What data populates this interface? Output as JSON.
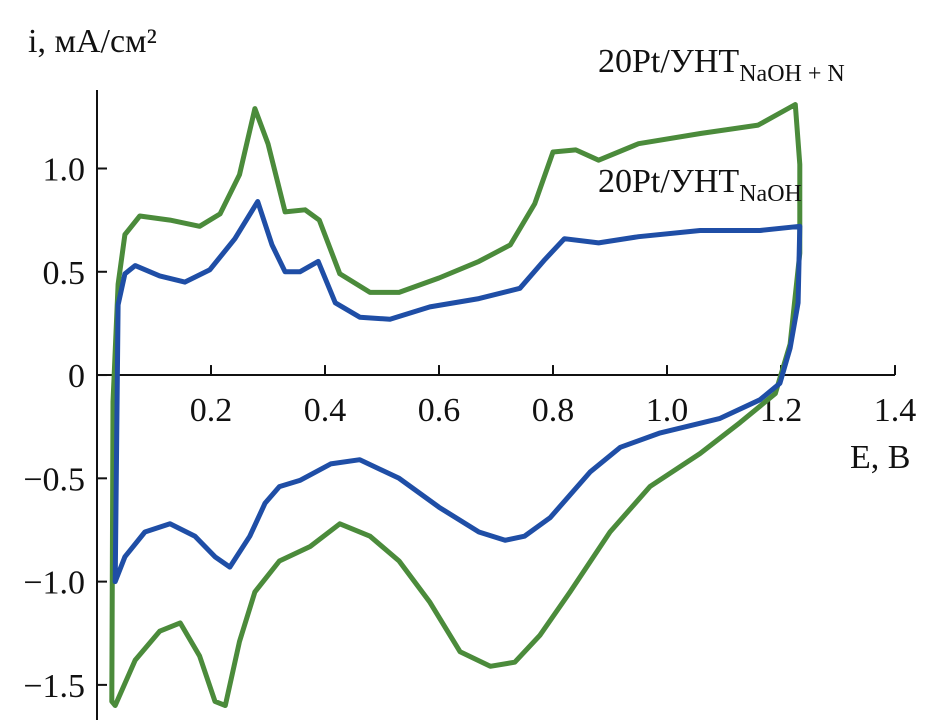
{
  "chart_data": {
    "type": "line",
    "y_label": "i, мА/см²",
    "x_label": "E, В",
    "xlim": [
      0,
      1.4
    ],
    "ylim": [
      -1.67,
      1.38
    ],
    "xticks": [
      0.2,
      0.4,
      0.6,
      0.8,
      {
        "value": 1.0,
        "label": "1.0"
      },
      1.2,
      1.4
    ],
    "yticks": [
      {
        "value": -1.5,
        "label": "−1.5"
      },
      {
        "value": -1.0,
        "label": "−1.0"
      },
      {
        "value": -0.5,
        "label": "−0.5"
      },
      0,
      0.5,
      {
        "value": 1.0,
        "label": "1.0"
      }
    ],
    "series": [
      {
        "name": "20Pt/УНТ",
        "name_sub": "NaOH + N",
        "color": "#4b8b3b",
        "x": [
          0.026,
          0.028,
          0.037,
          0.049,
          0.075,
          0.128,
          0.18,
          0.216,
          0.25,
          0.277,
          0.3,
          0.33,
          0.365,
          0.39,
          0.426,
          0.479,
          0.53,
          0.6,
          0.67,
          0.725,
          0.768,
          0.8,
          0.84,
          0.88,
          0.95,
          1.06,
          1.16,
          1.225,
          1.233,
          1.233,
          1.216,
          1.19,
          1.128,
          1.058,
          0.97,
          0.9,
          0.83,
          0.777,
          0.733,
          0.69,
          0.637,
          0.584,
          0.53,
          0.479,
          0.426,
          0.374,
          0.32,
          0.277,
          0.25,
          0.225,
          0.207,
          0.18,
          0.146,
          0.11,
          0.067,
          0.032
        ],
        "values": [
          -1.58,
          -0.13,
          0.44,
          0.68,
          0.77,
          0.75,
          0.72,
          0.78,
          0.97,
          1.29,
          1.12,
          0.79,
          0.8,
          0.75,
          0.49,
          0.4,
          0.4,
          0.47,
          0.55,
          0.63,
          0.83,
          1.08,
          1.09,
          1.04,
          1.12,
          1.17,
          1.21,
          1.31,
          1.02,
          0.59,
          0.15,
          -0.09,
          -0.23,
          -0.38,
          -0.54,
          -0.76,
          -1.05,
          -1.26,
          -1.39,
          -1.41,
          -1.34,
          -1.1,
          -0.9,
          -0.78,
          -0.72,
          -0.83,
          -0.9,
          -1.05,
          -1.29,
          -1.6,
          -1.58,
          -1.36,
          -1.2,
          -1.24,
          -1.38,
          -1.6
        ]
      },
      {
        "name": "20Pt/УНТ",
        "name_sub": "NaOH",
        "color": "#1f4ea6",
        "x": [
          0.032,
          0.037,
          0.049,
          0.067,
          0.11,
          0.154,
          0.198,
          0.242,
          0.282,
          0.307,
          0.33,
          0.356,
          0.388,
          0.418,
          0.461,
          0.514,
          0.584,
          0.67,
          0.742,
          0.786,
          0.82,
          0.88,
          0.95,
          1.058,
          1.163,
          1.233,
          1.23,
          1.216,
          1.198,
          1.163,
          1.093,
          0.988,
          0.918,
          0.865,
          0.795,
          0.75,
          0.716,
          0.67,
          0.6,
          0.53,
          0.461,
          0.41,
          0.356,
          0.32,
          0.295,
          0.268,
          0.233,
          0.207,
          0.172,
          0.128,
          0.084,
          0.049,
          0.032
        ],
        "values": [
          -1.0,
          0.34,
          0.49,
          0.53,
          0.48,
          0.45,
          0.51,
          0.66,
          0.84,
          0.63,
          0.5,
          0.5,
          0.55,
          0.35,
          0.28,
          0.27,
          0.33,
          0.37,
          0.42,
          0.56,
          0.66,
          0.64,
          0.67,
          0.7,
          0.7,
          0.72,
          0.35,
          0.13,
          -0.04,
          -0.12,
          -0.21,
          -0.28,
          -0.35,
          -0.47,
          -0.69,
          -0.78,
          -0.8,
          -0.76,
          -0.64,
          -0.5,
          -0.41,
          -0.43,
          -0.51,
          -0.54,
          -0.62,
          -0.78,
          -0.93,
          -0.88,
          -0.78,
          -0.72,
          -0.76,
          -0.88,
          -1.0
        ]
      }
    ]
  }
}
